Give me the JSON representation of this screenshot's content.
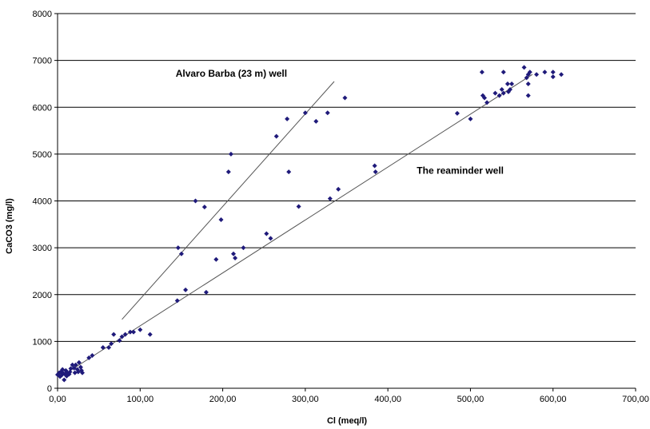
{
  "chart_data": {
    "type": "scatter",
    "xlabel": "Cl (meq/l)",
    "ylabel": "CaCO3 (mg/l)",
    "xlim": [
      0,
      700
    ],
    "ylim": [
      0,
      8000
    ],
    "x_ticks": [
      "0,00",
      "100,00",
      "200,00",
      "300,00",
      "400,00",
      "500,00",
      "600,00",
      "700,00"
    ],
    "y_ticks": [
      "0",
      "1000",
      "2000",
      "3000",
      "4000",
      "5000",
      "6000",
      "7000",
      "8000"
    ],
    "grid": "horizontal",
    "colors": {
      "points": "#1f1a7a",
      "lines": "#555555",
      "grid": "#000000"
    },
    "annotations": [
      {
        "text": "Alvaro Barba (23 m) well",
        "x": 143,
        "y": 6650
      },
      {
        "text": "The reaminder well",
        "x": 435,
        "y": 4580
      }
    ],
    "trendlines": [
      {
        "name": "Alvaro Barba (23 m) well",
        "x": [
          78,
          335
        ],
        "y": [
          1470,
          6550
        ]
      },
      {
        "name": "The reaminder well",
        "x": [
          5,
          575
        ],
        "y": [
          260,
          6700
        ]
      }
    ],
    "points": [
      [
        0,
        290
      ],
      [
        2,
        330
      ],
      [
        3,
        250
      ],
      [
        4,
        350
      ],
      [
        5,
        280
      ],
      [
        6,
        400
      ],
      [
        7,
        320
      ],
      [
        8,
        180
      ],
      [
        9,
        300
      ],
      [
        10,
        380
      ],
      [
        11,
        260
      ],
      [
        12,
        330
      ],
      [
        14,
        300
      ],
      [
        15,
        350
      ],
      [
        16,
        420
      ],
      [
        18,
        500
      ],
      [
        20,
        430
      ],
      [
        21,
        330
      ],
      [
        22,
        500
      ],
      [
        24,
        400
      ],
      [
        25,
        350
      ],
      [
        26,
        550
      ],
      [
        28,
        450
      ],
      [
        29,
        380
      ],
      [
        30,
        330
      ],
      [
        38,
        650
      ],
      [
        42,
        700
      ],
      [
        55,
        870
      ],
      [
        62,
        870
      ],
      [
        65,
        950
      ],
      [
        68,
        1150
      ],
      [
        75,
        1020
      ],
      [
        78,
        1100
      ],
      [
        82,
        1150
      ],
      [
        88,
        1200
      ],
      [
        92,
        1200
      ],
      [
        100,
        1250
      ],
      [
        112,
        1150
      ],
      [
        145,
        1870
      ],
      [
        146,
        3000
      ],
      [
        150,
        2870
      ],
      [
        155,
        2100
      ],
      [
        167,
        4000
      ],
      [
        178,
        3870
      ],
      [
        180,
        2050
      ],
      [
        192,
        2750
      ],
      [
        198,
        3600
      ],
      [
        207,
        4620
      ],
      [
        210,
        5000
      ],
      [
        213,
        2870
      ],
      [
        215,
        2780
      ],
      [
        225,
        3000
      ],
      [
        253,
        3300
      ],
      [
        258,
        3200
      ],
      [
        265,
        5380
      ],
      [
        278,
        5750
      ],
      [
        280,
        4620
      ],
      [
        292,
        3880
      ],
      [
        300,
        5880
      ],
      [
        313,
        5700
      ],
      [
        327,
        5880
      ],
      [
        330,
        4050
      ],
      [
        340,
        4250
      ],
      [
        348,
        6200
      ],
      [
        384,
        4750
      ],
      [
        385,
        4620
      ],
      [
        484,
        5870
      ],
      [
        500,
        5750
      ],
      [
        514,
        6750
      ],
      [
        515,
        6250
      ],
      [
        517,
        6200
      ],
      [
        520,
        6100
      ],
      [
        530,
        6300
      ],
      [
        535,
        6250
      ],
      [
        538,
        6380
      ],
      [
        540,
        6300
      ],
      [
        540,
        6750
      ],
      [
        545,
        6500
      ],
      [
        546,
        6330
      ],
      [
        548,
        6380
      ],
      [
        550,
        6500
      ],
      [
        565,
        6850
      ],
      [
        568,
        6630
      ],
      [
        570,
        6700
      ],
      [
        570,
        6250
      ],
      [
        570,
        6500
      ],
      [
        572,
        6750
      ],
      [
        580,
        6700
      ],
      [
        590,
        6750
      ],
      [
        600,
        6650
      ],
      [
        600,
        6750
      ],
      [
        610,
        6700
      ]
    ]
  }
}
